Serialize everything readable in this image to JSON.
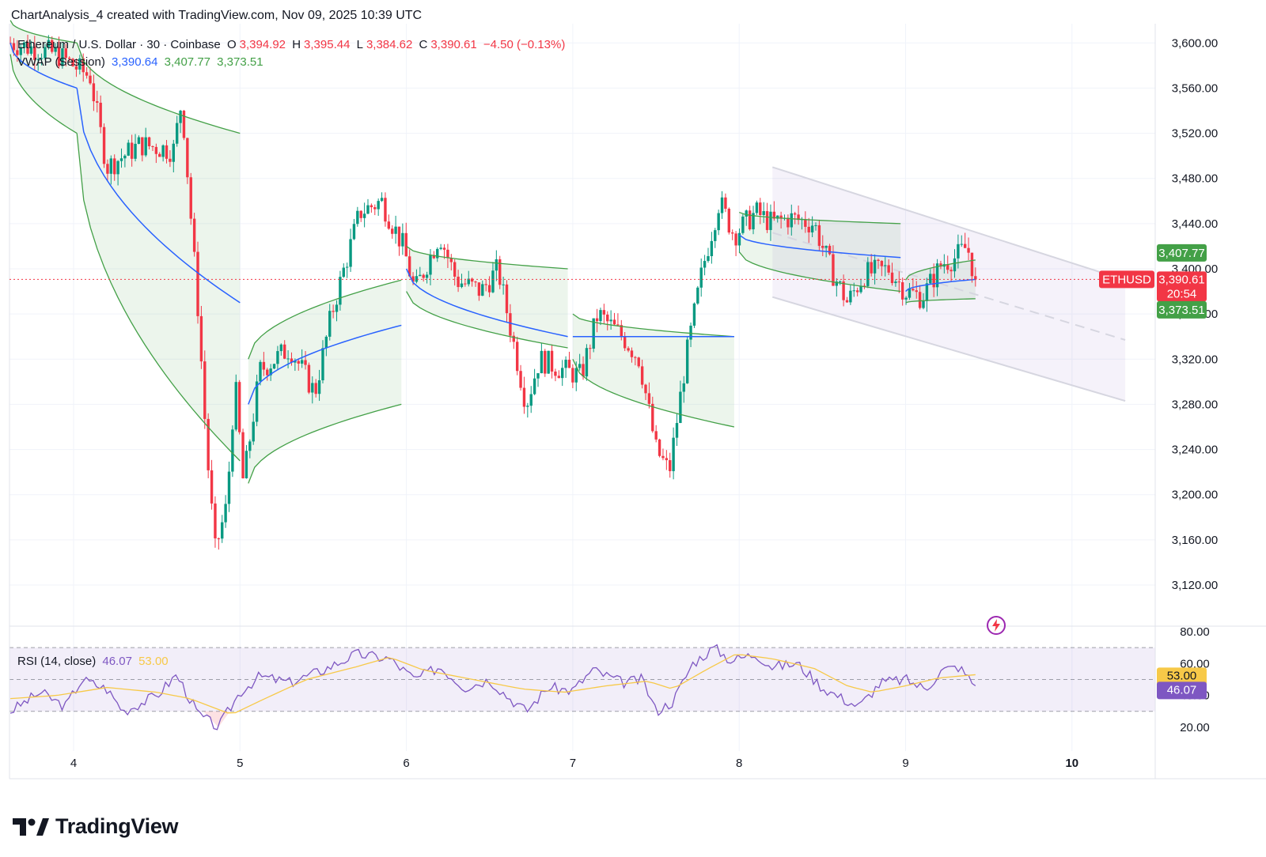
{
  "credit": "ChartAnalysis_4 created with TradingView.com, Nov 09, 2025 10:39 UTC",
  "legend": {
    "symbol": "Ethereum / U.S. Dollar · 30 · Coinbase",
    "open_label": "O",
    "open": "3,394.92",
    "high_label": "H",
    "high": "3,395.44",
    "low_label": "L",
    "low": "3,384.62",
    "close_label": "C",
    "close": "3,390.61",
    "change": "−4.50 (−0.13%)",
    "vwap_name": "VWAP (Session)",
    "vwap_mid": "3,390.64",
    "vwap_upper": "3,407.77",
    "vwap_lower": "3,373.51",
    "rsi_name": "RSI (14, close)",
    "rsi_value": "46.07",
    "rsi_ma": "53.00"
  },
  "tags": {
    "symbol": "ETHUSD",
    "upper": "3,407.77",
    "mid": "3,390.64",
    "price": "3,390.61",
    "countdown": "20:54",
    "lower": "3,373.51",
    "rsi_ma": "53.00",
    "rsi_value": "46.07"
  },
  "brand": "TradingView",
  "colors": {
    "up": "#089981",
    "down": "#f23645",
    "vwap": "#2962ff",
    "band": "#43a047",
    "rsi": "#7e57c2",
    "rsi_ma": "#f7c948",
    "channel": "#d1c4e9"
  },
  "chart_data": {
    "type": "candlestick",
    "x_ticks": [
      "4",
      "5",
      "6",
      "7",
      "8",
      "9",
      "10"
    ],
    "y_ticks": [
      "3,600.00",
      "3,560.00",
      "3,520.00",
      "3,480.00",
      "3,440.00",
      "3,400.00",
      "3,360.00",
      "3,320.00",
      "3,280.00",
      "3,240.00",
      "3,200.00",
      "3,160.00",
      "3,120.00"
    ],
    "y_range": [
      3085,
      3610
    ],
    "rsi_ticks": [
      "80.00",
      "60.00",
      "40.00",
      "20.00"
    ],
    "rsi_range": [
      15,
      82
    ],
    "rsi_bands": [
      70,
      50,
      30
    ],
    "last_price": 3390.61,
    "path": [
      [
        3.62,
        3600
      ],
      [
        3.9,
        3590
      ],
      [
        4.1,
        3570
      ],
      [
        4.2,
        3490
      ],
      [
        4.4,
        3510
      ],
      [
        4.6,
        3505
      ],
      [
        4.65,
        3550
      ],
      [
        4.75,
        3360
      ],
      [
        4.8,
        3240
      ],
      [
        4.85,
        3150
      ],
      [
        4.92,
        3190
      ],
      [
        4.97,
        3300
      ],
      [
        5.02,
        3210
      ],
      [
        5.12,
        3310
      ],
      [
        5.3,
        3330
      ],
      [
        5.45,
        3290
      ],
      [
        5.55,
        3360
      ],
      [
        5.72,
        3450
      ],
      [
        5.85,
        3460
      ],
      [
        5.98,
        3420
      ],
      [
        6.05,
        3380
      ],
      [
        6.2,
        3430
      ],
      [
        6.3,
        3390
      ],
      [
        6.45,
        3380
      ],
      [
        6.55,
        3400
      ],
      [
        6.65,
        3330
      ],
      [
        6.72,
        3280
      ],
      [
        6.8,
        3320
      ],
      [
        6.95,
        3310
      ],
      [
        7.05,
        3305
      ],
      [
        7.15,
        3360
      ],
      [
        7.3,
        3340
      ],
      [
        7.4,
        3320
      ],
      [
        7.5,
        3240
      ],
      [
        7.58,
        3220
      ],
      [
        7.68,
        3320
      ],
      [
        7.78,
        3400
      ],
      [
        7.88,
        3460
      ],
      [
        7.97,
        3430
      ],
      [
        8.1,
        3450
      ],
      [
        8.2,
        3440
      ],
      [
        8.3,
        3445
      ],
      [
        8.45,
        3440
      ],
      [
        8.55,
        3400
      ],
      [
        8.65,
        3370
      ],
      [
        8.75,
        3395
      ],
      [
        8.9,
        3400
      ],
      [
        9.0,
        3380
      ],
      [
        9.1,
        3375
      ],
      [
        9.22,
        3405
      ],
      [
        9.3,
        3410
      ],
      [
        9.37,
        3420
      ],
      [
        9.42,
        3390.61
      ]
    ],
    "vwap_sessions": [
      {
        "start": 3.62,
        "end": 4.02,
        "mid": [
          3600,
          3560
        ],
        "upper": [
          3620,
          3600
        ],
        "lower": [
          3590,
          3520
        ]
      },
      {
        "start": 4.02,
        "end": 5.0,
        "mid": [
          3560,
          3370
        ],
        "upper": [
          3600,
          3520
        ],
        "lower": [
          3520,
          3230
        ]
      },
      {
        "start": 5.05,
        "end": 5.97,
        "mid": [
          3280,
          3350
        ],
        "upper": [
          3320,
          3390
        ],
        "lower": [
          3210,
          3280
        ]
      },
      {
        "start": 6.0,
        "end": 6.97,
        "mid": [
          3400,
          3340
        ],
        "upper": [
          3420,
          3400
        ],
        "lower": [
          3380,
          3330
        ]
      },
      {
        "start": 7.0,
        "end": 7.97,
        "mid": [
          3340,
          3340
        ],
        "upper": [
          3360,
          3340
        ],
        "lower": [
          3320,
          3260
        ]
      },
      {
        "start": 8.0,
        "end": 8.97,
        "mid": [
          3430,
          3410
        ],
        "upper": [
          3450,
          3440
        ],
        "lower": [
          3415,
          3380
        ]
      },
      {
        "start": 9.0,
        "end": 9.42,
        "mid": [
          3380,
          3390.64
        ],
        "upper": [
          3390,
          3407.77
        ],
        "lower": [
          3370,
          3373.51
        ]
      }
    ],
    "channel": {
      "x0": 8.2,
      "x1": 10.32,
      "upper": [
        3490,
        3390
      ],
      "lower": [
        3375,
        3283
      ],
      "middle": [
        3432,
        3337
      ]
    },
    "rsi_path": [
      [
        3.62,
        30
      ],
      [
        3.8,
        42
      ],
      [
        3.95,
        33
      ],
      [
        4.05,
        50
      ],
      [
        4.2,
        44
      ],
      [
        4.3,
        30
      ],
      [
        4.5,
        40
      ],
      [
        4.62,
        53
      ],
      [
        4.75,
        28
      ],
      [
        4.87,
        20
      ],
      [
        5.0,
        42
      ],
      [
        5.12,
        52
      ],
      [
        5.3,
        48
      ],
      [
        5.5,
        56
      ],
      [
        5.7,
        66
      ],
      [
        5.9,
        63
      ],
      [
        6.05,
        50
      ],
      [
        6.2,
        58
      ],
      [
        6.35,
        45
      ],
      [
        6.5,
        50
      ],
      [
        6.6,
        40
      ],
      [
        6.72,
        30
      ],
      [
        6.85,
        45
      ],
      [
        7.0,
        43
      ],
      [
        7.12,
        56
      ],
      [
        7.3,
        48
      ],
      [
        7.42,
        50
      ],
      [
        7.5,
        30
      ],
      [
        7.6,
        36
      ],
      [
        7.72,
        60
      ],
      [
        7.85,
        70
      ],
      [
        7.95,
        62
      ],
      [
        8.1,
        66
      ],
      [
        8.2,
        58
      ],
      [
        8.35,
        60
      ],
      [
        8.5,
        45
      ],
      [
        8.62,
        38
      ],
      [
        8.72,
        33
      ],
      [
        8.85,
        48
      ],
      [
        9.0,
        50
      ],
      [
        9.12,
        44
      ],
      [
        9.22,
        56
      ],
      [
        9.32,
        58
      ],
      [
        9.42,
        46.07
      ]
    ],
    "rsi_ma_path": [
      [
        3.62,
        38
      ],
      [
        3.9,
        40
      ],
      [
        4.2,
        45
      ],
      [
        4.5,
        42
      ],
      [
        4.7,
        38
      ],
      [
        4.95,
        28
      ],
      [
        5.15,
        38
      ],
      [
        5.4,
        50
      ],
      [
        5.7,
        58
      ],
      [
        5.9,
        64
      ],
      [
        6.1,
        56
      ],
      [
        6.4,
        50
      ],
      [
        6.7,
        44
      ],
      [
        6.95,
        42
      ],
      [
        7.2,
        46
      ],
      [
        7.45,
        49
      ],
      [
        7.6,
        44
      ],
      [
        7.8,
        56
      ],
      [
        7.98,
        66
      ],
      [
        8.2,
        63
      ],
      [
        8.45,
        57
      ],
      [
        8.65,
        46
      ],
      [
        8.8,
        42
      ],
      [
        9.0,
        46
      ],
      [
        9.2,
        51
      ],
      [
        9.42,
        53.0
      ]
    ]
  }
}
